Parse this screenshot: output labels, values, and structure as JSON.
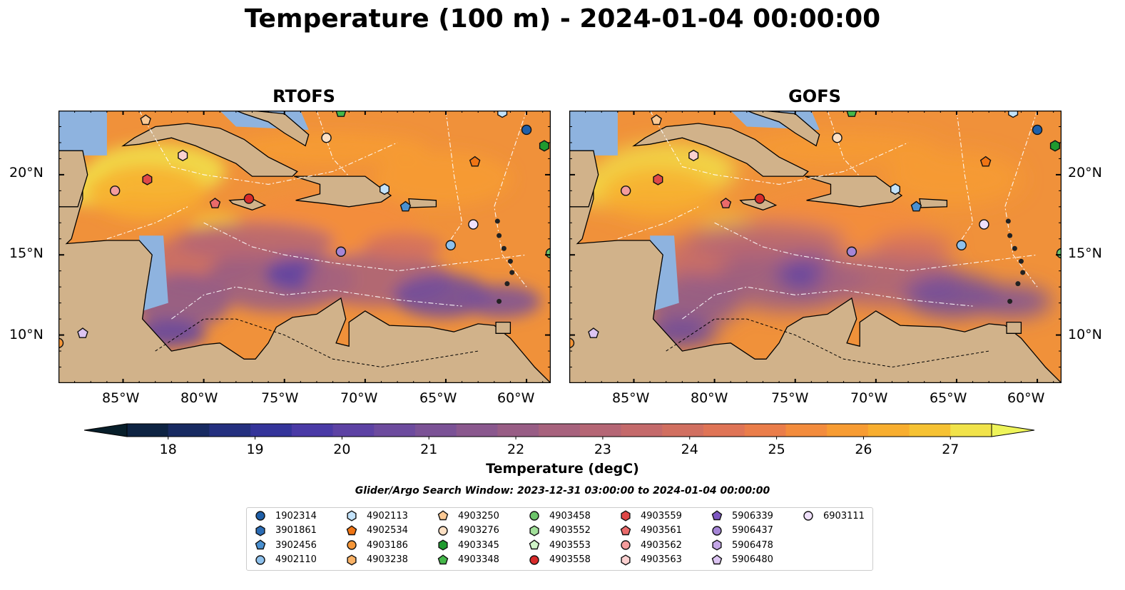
{
  "title": "Temperature (100 m) - 2024-01-04 00:00:00",
  "panels": [
    {
      "title": "RTOFS"
    },
    {
      "title": "GOFS"
    }
  ],
  "axes": {
    "lon_labels": [
      "85°W",
      "80°W",
      "75°W",
      "70°W",
      "65°W",
      "60°W"
    ],
    "lon_values": [
      -85,
      -80,
      -75,
      -70,
      -65,
      -60
    ],
    "lat_labels": [
      "20°N",
      "15°N",
      "10°N"
    ],
    "lat_values": [
      20,
      15,
      10
    ],
    "lon_range": [
      -89,
      -58.5
    ],
    "lat_range": [
      7,
      24
    ]
  },
  "colorbar": {
    "label": "Temperature (degC)",
    "ticks": [
      "18",
      "19",
      "20",
      "21",
      "22",
      "23",
      "24",
      "25",
      "26",
      "27"
    ],
    "min": 18,
    "max": 27,
    "step": 0.5,
    "colors": [
      "#0d2342",
      "#172a61",
      "#24307f",
      "#34349a",
      "#4a3aa6",
      "#5d42a4",
      "#6d4b9e",
      "#7b5296",
      "#8a588e",
      "#985d85",
      "#a7627d",
      "#b56675",
      "#c46a6b",
      "#d16f60",
      "#df7456",
      "#ea7d4a",
      "#f38c3d",
      "#f79c33",
      "#f8ae2f",
      "#f6c233",
      "#f1e34a"
    ],
    "under_color": "#071e2a",
    "over_color": "#eef45a"
  },
  "search_window": "Glider/Argo Search Window: 2023-12-31 03:00:00 to 2024-01-04 00:00:00",
  "legend": {
    "items": [
      {
        "label": "1902314",
        "marker": "circle",
        "color": "#1f5fa8"
      },
      {
        "label": "3901861",
        "marker": "hexagon",
        "color": "#2b6cb5"
      },
      {
        "label": "3902456",
        "marker": "pentagon",
        "color": "#4a90d0"
      },
      {
        "label": "4902110",
        "marker": "circle",
        "color": "#8ec1ec"
      },
      {
        "label": "4902113",
        "marker": "hexagon",
        "color": "#c3e3fb"
      },
      {
        "label": "4902534",
        "marker": "pentagon",
        "color": "#f07514"
      },
      {
        "label": "4903186",
        "marker": "circle",
        "color": "#f59638"
      },
      {
        "label": "4903238",
        "marker": "hexagon",
        "color": "#f9b266"
      },
      {
        "label": "4903250",
        "marker": "pentagon",
        "color": "#fbc994"
      },
      {
        "label": "4903276",
        "marker": "circle",
        "color": "#fde0c4"
      },
      {
        "label": "4903345",
        "marker": "hexagon",
        "color": "#1f9a2f"
      },
      {
        "label": "4903348",
        "marker": "pentagon",
        "color": "#45b84a"
      },
      {
        "label": "4903458",
        "marker": "circle",
        "color": "#6cc46a"
      },
      {
        "label": "4903552",
        "marker": "hexagon",
        "color": "#a2e09a"
      },
      {
        "label": "4903553",
        "marker": "pentagon",
        "color": "#d0f5c8"
      },
      {
        "label": "4903558",
        "marker": "circle",
        "color": "#d82a2a"
      },
      {
        "label": "4903559",
        "marker": "hexagon",
        "color": "#e04848"
      },
      {
        "label": "4903561",
        "marker": "pentagon",
        "color": "#ea6a6a"
      },
      {
        "label": "4903562",
        "marker": "circle",
        "color": "#f49c9c"
      },
      {
        "label": "4903563",
        "marker": "hexagon",
        "color": "#fbd0d0"
      },
      {
        "label": "5906339",
        "marker": "pentagon",
        "color": "#7e57c2"
      },
      {
        "label": "5906437",
        "marker": "circle",
        "color": "#a585d6"
      },
      {
        "label": "5906478",
        "marker": "hexagon",
        "color": "#c4a6e6"
      },
      {
        "label": "5906480",
        "marker": "pentagon",
        "color": "#dcc4f2"
      },
      {
        "label": "6903111",
        "marker": "circle",
        "color": "#efe0fb"
      }
    ]
  },
  "observations": [
    {
      "id": "1902314",
      "lon": -60.0,
      "lat": 22.8
    },
    {
      "id": "3902456",
      "lon": -67.5,
      "lat": 18.0
    },
    {
      "id": "4902110",
      "lon": -64.7,
      "lat": 15.6
    },
    {
      "id": "4902113",
      "lon": -68.8,
      "lat": 19.1
    },
    {
      "id": "4902113",
      "lon": -61.5,
      "lat": 23.9
    },
    {
      "id": "4902534",
      "lon": -63.2,
      "lat": 20.8
    },
    {
      "id": "4903186",
      "lon": -89.0,
      "lat": 9.5
    },
    {
      "id": "4903250",
      "lon": -83.6,
      "lat": 23.4
    },
    {
      "id": "4903276",
      "lon": -72.4,
      "lat": 22.3
    },
    {
      "id": "4903345",
      "lon": -58.9,
      "lat": 21.8
    },
    {
      "id": "4903348",
      "lon": -71.5,
      "lat": 23.9
    },
    {
      "id": "4903458",
      "lon": -58.5,
      "lat": 15.1
    },
    {
      "id": "4903558",
      "lon": -77.2,
      "lat": 18.5
    },
    {
      "id": "4903559",
      "lon": -83.5,
      "lat": 19.7
    },
    {
      "id": "4903561",
      "lon": -79.3,
      "lat": 18.2
    },
    {
      "id": "4903562",
      "lon": -85.5,
      "lat": 19.0
    },
    {
      "id": "4903563",
      "lon": -81.3,
      "lat": 21.2
    },
    {
      "id": "5906437",
      "lon": -71.5,
      "lat": 15.2
    },
    {
      "id": "5906480",
      "lon": -87.5,
      "lat": 10.1
    },
    {
      "id": "6903111",
      "lon": -63.3,
      "lat": 16.9
    }
  ]
}
